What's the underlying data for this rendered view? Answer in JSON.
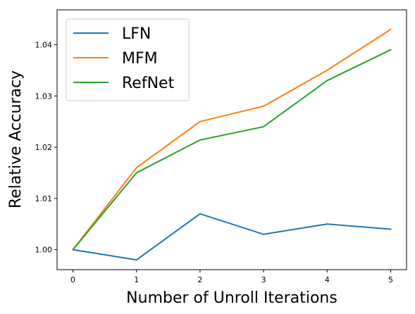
{
  "chart_data": {
    "type": "line",
    "title": "",
    "xlabel": "Number of Unroll Iterations",
    "ylabel": "Relative Accuracy",
    "x": [
      0,
      1,
      2,
      3,
      4,
      5
    ],
    "xticks": [
      0,
      1,
      2,
      3,
      4,
      5
    ],
    "xtick_labels": [
      "0",
      "1",
      "2",
      "3",
      "4",
      "5"
    ],
    "yticks": [
      1.0,
      1.01,
      1.02,
      1.03,
      1.04
    ],
    "ytick_labels": [
      "1.00",
      "1.01",
      "1.02",
      "1.03",
      "1.04"
    ],
    "xlim": [
      -0.25,
      5.25
    ],
    "ylim": [
      0.9961,
      1.0468
    ],
    "grid": false,
    "legend_position": "top-left",
    "series": [
      {
        "name": "LFN",
        "color": "#1f77b4",
        "values": [
          1.0,
          0.998,
          1.007,
          1.003,
          1.005,
          1.004
        ]
      },
      {
        "name": "MFM",
        "color": "#ff7f0e",
        "values": [
          1.0,
          1.016,
          1.025,
          1.028,
          1.035,
          1.043
        ]
      },
      {
        "name": "RefNet",
        "color": "#2ca02c",
        "values": [
          1.0,
          1.015,
          1.0214,
          1.024,
          1.033,
          1.039
        ]
      }
    ]
  }
}
